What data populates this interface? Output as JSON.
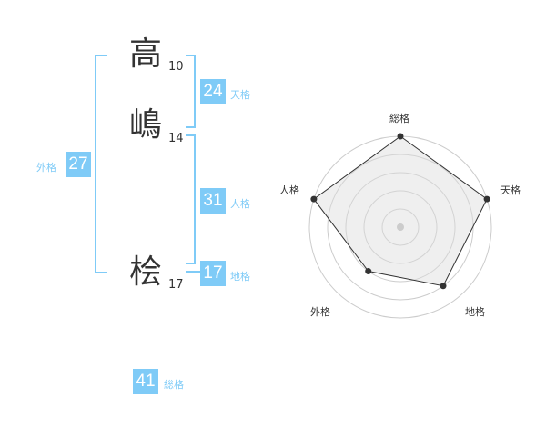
{
  "name": [
    {
      "char": "高",
      "strokes": "10"
    },
    {
      "char": "嶋",
      "strokes": "14"
    },
    {
      "char": "桧",
      "strokes": "17"
    }
  ],
  "fortunes": {
    "ten": {
      "value": "24",
      "label": "天格"
    },
    "jin": {
      "value": "31",
      "label": "人格"
    },
    "chi": {
      "value": "17",
      "label": "地格"
    },
    "gai": {
      "value": "27",
      "label": "外格"
    },
    "sou": {
      "value": "41",
      "label": "総格"
    }
  },
  "accent_color": "#7fcbf7",
  "chart_data": {
    "type": "radar",
    "axes": [
      "総格",
      "天格",
      "地格",
      "外格",
      "人格"
    ],
    "values": [
      5,
      5,
      4,
      3,
      5
    ],
    "range": [
      0,
      5
    ],
    "rings": 5
  }
}
